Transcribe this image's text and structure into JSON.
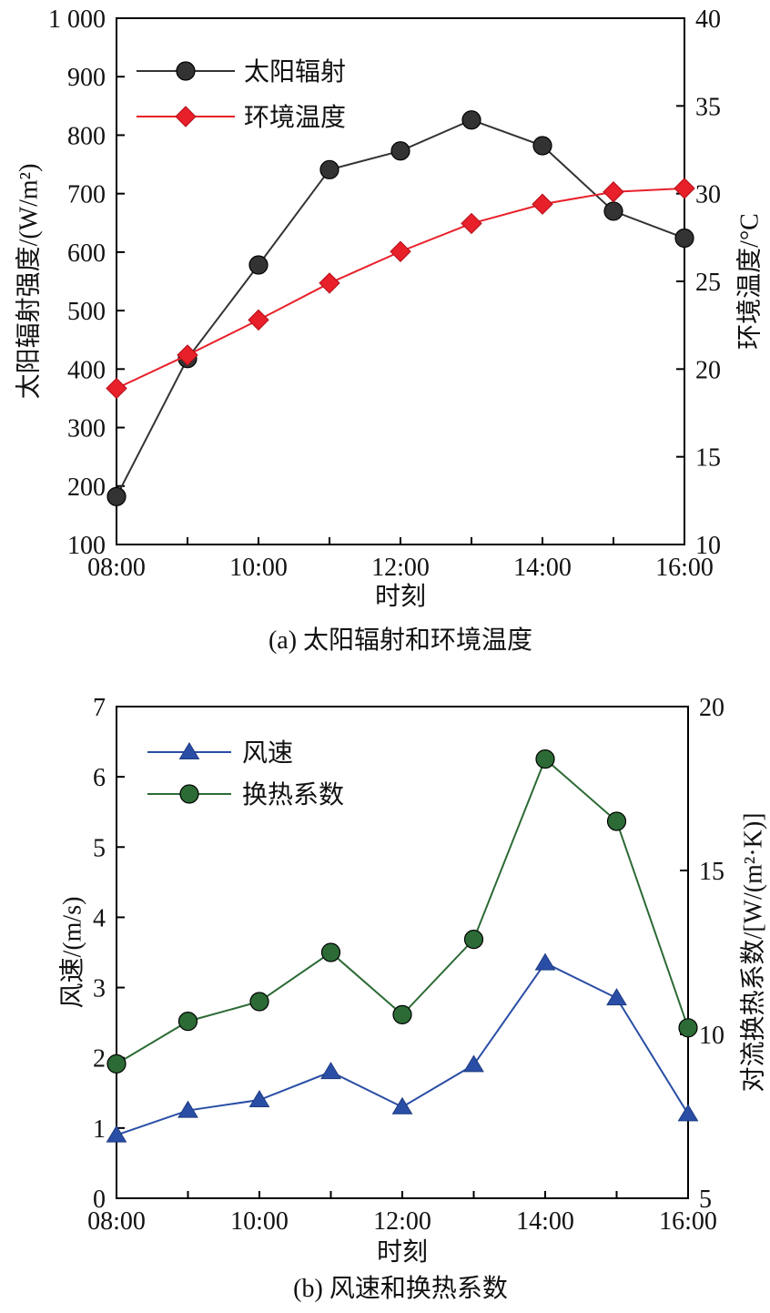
{
  "chart_data": [
    {
      "type": "line",
      "caption": "(a) 太阳辐射和环境温度",
      "x": [
        "08:00",
        "09:00",
        "10:00",
        "11:00",
        "12:00",
        "13:00",
        "14:00",
        "15:00",
        "16:00"
      ],
      "xticks": [
        "08:00",
        "10:00",
        "12:00",
        "14:00",
        "16:00"
      ],
      "xlabel": "时刻",
      "ylabel_left": "太阳辐射强度/(W/m²)",
      "ylabel_right": "环境温度/°C",
      "ylim_left": [
        100,
        1000
      ],
      "ylim_right": [
        10,
        40
      ],
      "yticks_left": [
        "100",
        "200",
        "300",
        "400",
        "500",
        "600",
        "700",
        "800",
        "900",
        "1 000"
      ],
      "yticks_right": [
        "10",
        "15",
        "20",
        "25",
        "30",
        "35",
        "40"
      ],
      "legend_position": "top-left",
      "grid": false,
      "series": [
        {
          "name": "太阳辐射",
          "axis": "left",
          "marker": "circle",
          "color": "#333333",
          "values": [
            182,
            418,
            578,
            741,
            773,
            826,
            782,
            670,
            624
          ]
        },
        {
          "name": "环境温度",
          "axis": "right",
          "marker": "diamond",
          "color": "#e8202a",
          "values": [
            18.9,
            20.8,
            22.8,
            24.9,
            26.7,
            28.3,
            29.4,
            30.1,
            30.3
          ]
        }
      ]
    },
    {
      "type": "line",
      "caption": "(b) 风速和换热系数",
      "x": [
        "08:00",
        "09:00",
        "10:00",
        "11:00",
        "12:00",
        "13:00",
        "14:00",
        "15:00",
        "16:00"
      ],
      "xticks": [
        "08:00",
        "10:00",
        "12:00",
        "14:00",
        "16:00"
      ],
      "xlabel": "时刻",
      "ylabel_left": "风速/(m/s)",
      "ylabel_right": "对流换热系数/[W/(m²·K)]",
      "ylim_left": [
        0,
        7
      ],
      "ylim_right": [
        5,
        20
      ],
      "yticks_left": [
        "0",
        "1",
        "2",
        "3",
        "4",
        "5",
        "6",
        "7"
      ],
      "yticks_right": [
        "5",
        "10",
        "15",
        "20"
      ],
      "legend_position": "top-left",
      "grid": false,
      "series": [
        {
          "name": "风速",
          "axis": "left",
          "marker": "triangle",
          "color": "#2a4ea6",
          "values": [
            0.9,
            1.25,
            1.4,
            1.8,
            1.3,
            1.9,
            3.35,
            2.85,
            1.2
          ]
        },
        {
          "name": "换热系数",
          "axis": "right",
          "marker": "circle",
          "color": "#2c6b35",
          "values": [
            9.1,
            10.4,
            11.0,
            12.5,
            10.6,
            12.9,
            18.4,
            16.5,
            10.2
          ]
        }
      ]
    }
  ]
}
